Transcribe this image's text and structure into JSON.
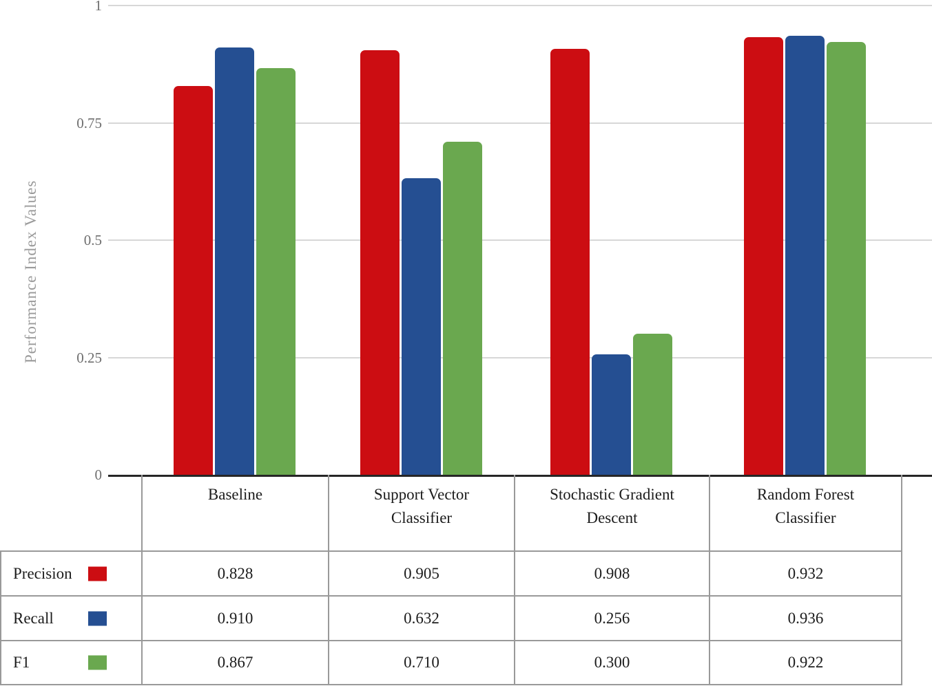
{
  "chart_data": {
    "type": "bar",
    "title": "",
    "xlabel": "",
    "ylabel": "Performance Index Values",
    "ylim": [
      0,
      1
    ],
    "grid": true,
    "legend_position": "table-left",
    "yticks": [
      {
        "label": "1",
        "value": 1
      },
      {
        "label": "0.75",
        "value": 0.75
      },
      {
        "label": "0.5",
        "value": 0.5
      },
      {
        "label": "0.25",
        "value": 0.25
      },
      {
        "label": "0",
        "value": 0
      }
    ],
    "categories": [
      "Baseline",
      "Support Vector Classifier",
      "Stochastic Gradient Descent",
      "Random Forest Classifier"
    ],
    "series": [
      {
        "name": "Precision",
        "color": "#cc0d12",
        "values": [
          0.828,
          0.905,
          0.908,
          0.932
        ],
        "display": [
          "0.828",
          "0.905",
          "0.908",
          "0.932"
        ]
      },
      {
        "name": "Recall",
        "color": "#254f92",
        "values": [
          0.91,
          0.632,
          0.256,
          0.936
        ],
        "display": [
          "0.910",
          "0.632",
          "0.256",
          "0.936"
        ]
      },
      {
        "name": "F1",
        "color": "#6aa84f",
        "values": [
          0.867,
          0.71,
          0.3,
          0.922
        ],
        "display": [
          "0.867",
          "0.710",
          "0.300",
          "0.922"
        ]
      }
    ],
    "colors": {
      "grid": "#d7d7d7",
      "axis_line": "#262626",
      "table_border": "#999999",
      "tick_text": "#6e6e6e",
      "axis_title_text": "#9a9a9a",
      "table_text": "#1c1c1c"
    }
  }
}
